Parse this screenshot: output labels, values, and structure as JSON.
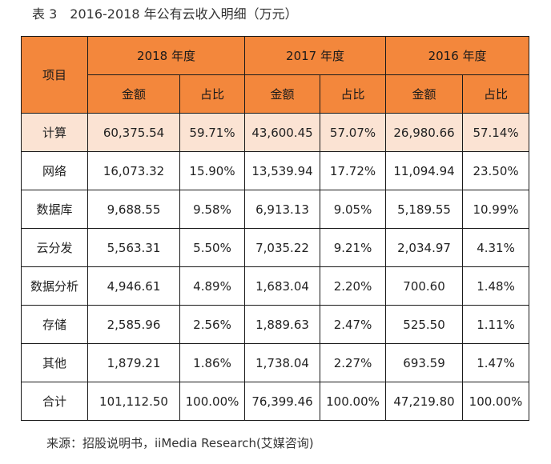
{
  "caption": {
    "label": "表 3",
    "title": "2016-2018 年公有云收入明细（万元）"
  },
  "table": {
    "header_item": "项目",
    "years": [
      "2018 年度",
      "2017 年度",
      "2016 年度"
    ],
    "sub_amount": "金额",
    "sub_ratio": "占比",
    "rows": [
      {
        "item": "计算",
        "cells": [
          "60,375.54",
          "59.71%",
          "43,600.45",
          "57.07%",
          "26,980.66",
          "57.14%"
        ]
      },
      {
        "item": "网络",
        "cells": [
          "16,073.32",
          "15.90%",
          "13,539.94",
          "17.72%",
          "11,094.94",
          "23.50%"
        ]
      },
      {
        "item": "数据库",
        "cells": [
          "9,688.55",
          "9.58%",
          "6,913.13",
          "9.05%",
          "5,189.55",
          "10.99%"
        ]
      },
      {
        "item": "云分发",
        "cells": [
          "5,563.31",
          "5.50%",
          "7,035.22",
          "9.21%",
          "2,034.97",
          "4.31%"
        ]
      },
      {
        "item": "数据分析",
        "cells": [
          "4,946.61",
          "4.89%",
          "1,683.04",
          "2.20%",
          "700.60",
          "1.48%"
        ]
      },
      {
        "item": "存储",
        "cells": [
          "2,585.96",
          "2.56%",
          "1,889.63",
          "2.47%",
          "525.50",
          "1.11%"
        ]
      },
      {
        "item": "其他",
        "cells": [
          "1,879.21",
          "1.86%",
          "1,738.04",
          "2.27%",
          "693.59",
          "1.47%"
        ]
      },
      {
        "item": "合计",
        "cells": [
          "101,112.50",
          "100.00%",
          "76,399.46",
          "100.00%",
          "47,219.80",
          "100.00%"
        ]
      }
    ]
  },
  "source": "来源：招股说明书，iiMedia Research(艾媒咨询)",
  "colors": {
    "header_bg": "#f3873c",
    "highlight_bg": "#fbe3d3",
    "border": "#1a1a1a"
  }
}
